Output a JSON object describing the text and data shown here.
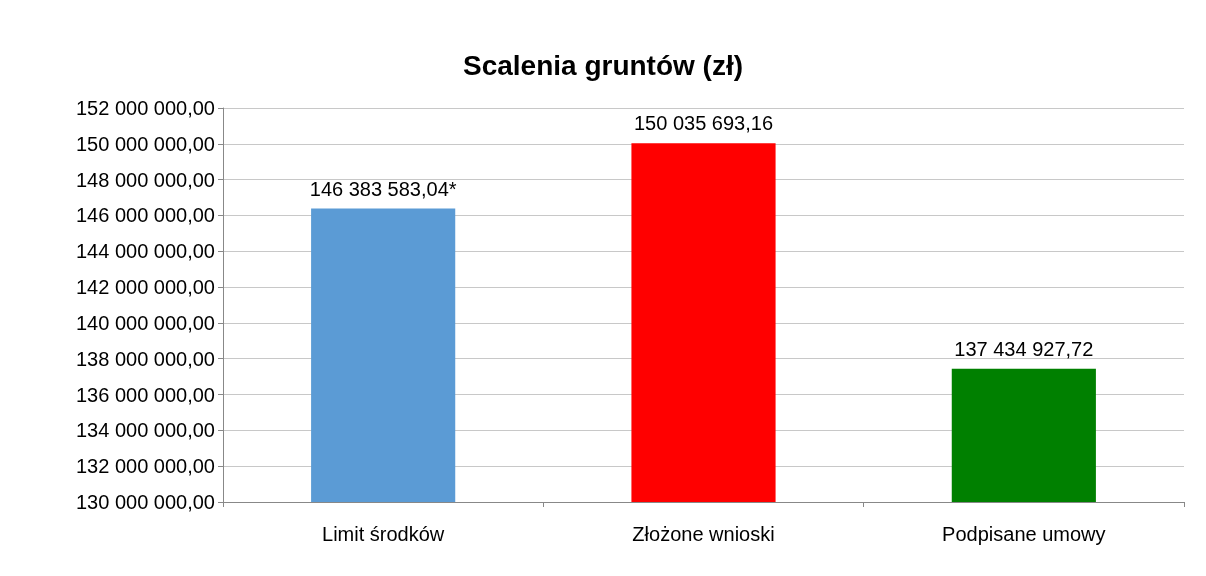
{
  "chart_data": {
    "type": "bar",
    "title": "Scalenia gruntów (zł)",
    "categories": [
      "Limit środków",
      "Złożone wnioski",
      "Podpisane umowy"
    ],
    "values": [
      146383583.04,
      150035693.16,
      137434927.72
    ],
    "colors": [
      "#5b9bd5",
      "#ff0000",
      "#008000"
    ],
    "value_labels": [
      "146 383 583,04*",
      "150 035 693,16",
      "137 434 927,72"
    ],
    "ylim": [
      130000000,
      152000000
    ],
    "yticks": [
      {
        "value": 130000000,
        "label": "130 000 000,00"
      },
      {
        "value": 132000000,
        "label": "132 000 000,00"
      },
      {
        "value": 134000000,
        "label": "134 000 000,00"
      },
      {
        "value": 136000000,
        "label": "136 000 000,00"
      },
      {
        "value": 138000000,
        "label": "138 000 000,00"
      },
      {
        "value": 140000000,
        "label": "140 000 000,00"
      },
      {
        "value": 142000000,
        "label": "142 000 000,00"
      },
      {
        "value": 144000000,
        "label": "144 000 000,00"
      },
      {
        "value": 146000000,
        "label": "146 000 000,00"
      },
      {
        "value": 148000000,
        "label": "148 000 000,00"
      },
      {
        "value": 150000000,
        "label": "150 000 000,00"
      },
      {
        "value": 152000000,
        "label": "152 000 000,00"
      }
    ],
    "grid": "y"
  }
}
